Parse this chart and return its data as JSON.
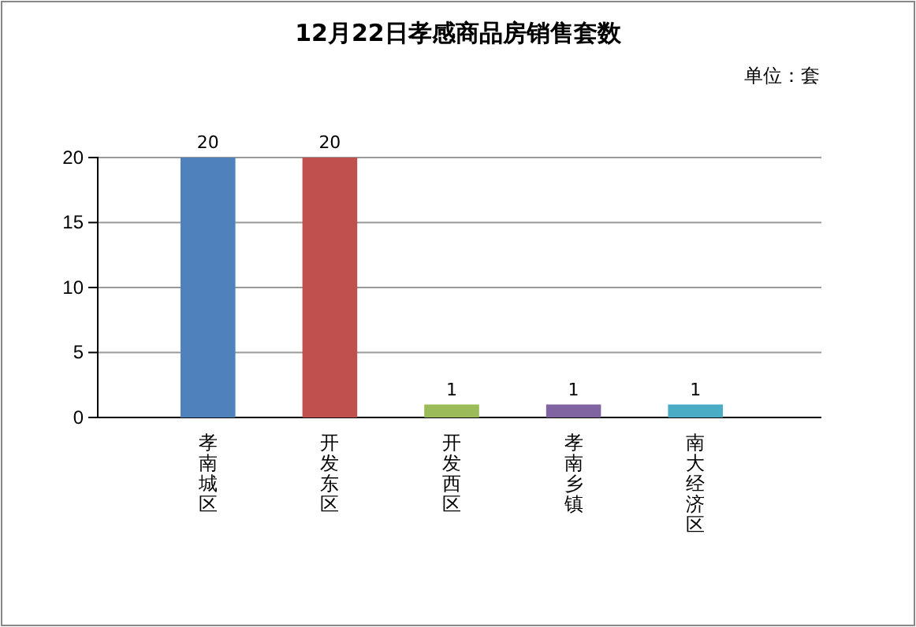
{
  "chart_data": {
    "type": "bar",
    "title": "12月22日孝感商品房销售套数",
    "annotations": [
      "单位：套"
    ],
    "categories": [
      "孝南城区",
      "开发东区",
      "开发西区",
      "孝南乡镇",
      "南大经济区"
    ],
    "values": [
      20,
      20,
      1,
      1,
      1
    ],
    "colors": [
      "#4f81bd",
      "#c0504d",
      "#9bbb59",
      "#8064a2",
      "#4bacc6"
    ],
    "ylim": [
      0,
      20
    ],
    "yticks": [
      0,
      5,
      10,
      15,
      20
    ],
    "grid": "y",
    "data_labels": true
  }
}
